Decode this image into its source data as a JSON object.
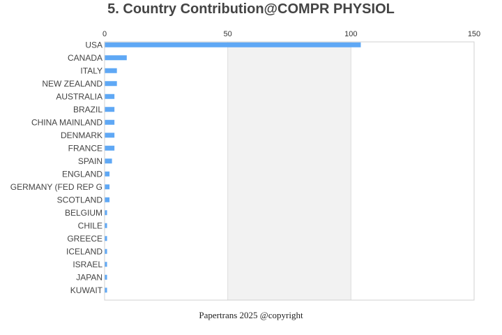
{
  "title": "5. Country Contribution@COMPR PHYSIOL",
  "footer": "Papertrans 2025 @copyright",
  "colors": {
    "bar": "#5fa8f5",
    "band": "#f2f2f2",
    "grid": "#dddddd",
    "frame": "#d0d0d0",
    "title": "#444444"
  },
  "chart_data": {
    "type": "bar",
    "orientation": "horizontal",
    "xaxis_position": "top",
    "xlim": [
      0,
      150
    ],
    "xticks": [
      0,
      50,
      100,
      150
    ],
    "categories": [
      "USA",
      "CANADA",
      "ITALY",
      "NEW ZEALAND",
      "AUSTRALIA",
      "BRAZIL",
      "CHINA MAINLAND",
      "DENMARK",
      "FRANCE",
      "SPAIN",
      "ENGLAND",
      "GERMANY (FED REP G",
      "SCOTLAND",
      "BELGIUM",
      "CHILE",
      "GREECE",
      "ICELAND",
      "ISRAEL",
      "JAPAN",
      "KUWAIT"
    ],
    "values": [
      104,
      9,
      5,
      5,
      4,
      4,
      4,
      4,
      4,
      3,
      2,
      2,
      2,
      1,
      1,
      1,
      1,
      1,
      1,
      1
    ],
    "grid": true,
    "legend": "none"
  }
}
